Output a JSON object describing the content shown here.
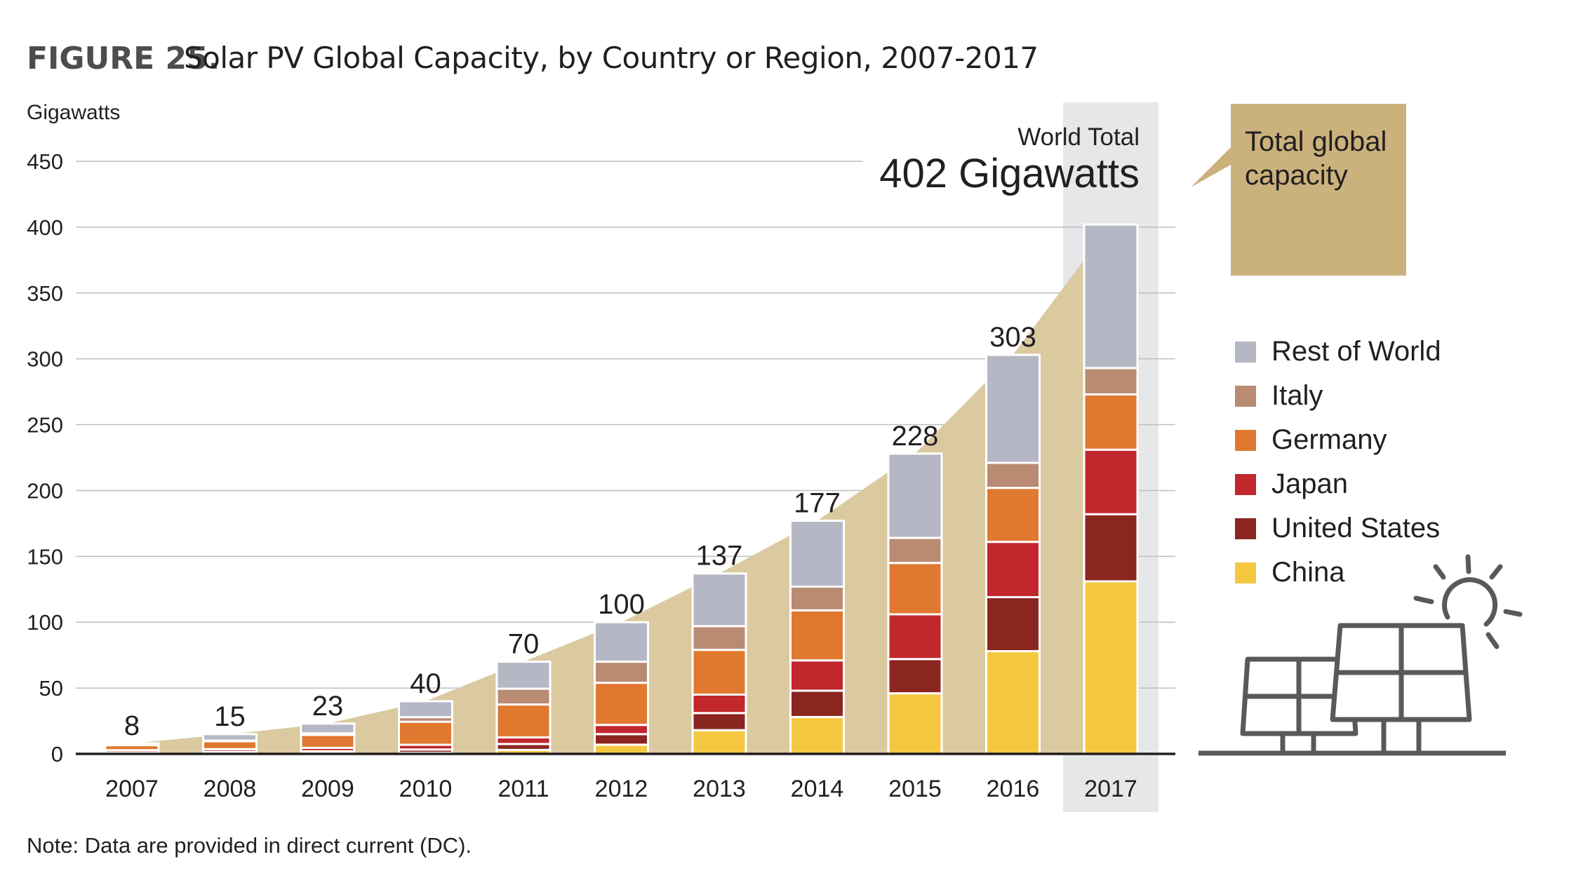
{
  "figure_label": "FIGURE 25.",
  "title": "Solar PV Global Capacity, by Country or Region, 2007-2017",
  "note": "Note: Data are provided in direct current (DC).",
  "world_total": {
    "label": "World Total",
    "value": "402 Gigawatts"
  },
  "callout": "Total global capacity",
  "colors": {
    "total_area": "#dbcaa0",
    "highlight_column": "#e6e7e9",
    "callout_box": "#cbb27d",
    "grid": "#bcbec0",
    "axis": "#231f20",
    "icon": "#58595b"
  },
  "icons": [
    "solar-panel-icon",
    "sun-icon"
  ],
  "chart_data": {
    "type": "bar",
    "stacked": true,
    "ylabel": "Gigawatts",
    "xlabel": "",
    "ylim": [
      0,
      450
    ],
    "yticks": [
      0,
      50,
      100,
      150,
      200,
      250,
      300,
      350,
      400,
      450
    ],
    "grid": true,
    "legend_position": "right",
    "highlighted_category": "2017",
    "categories": [
      "2007",
      "2008",
      "2009",
      "2010",
      "2011",
      "2012",
      "2013",
      "2014",
      "2015",
      "2016",
      "2017"
    ],
    "totals": [
      8,
      15,
      23,
      40,
      70,
      100,
      137,
      177,
      228,
      303,
      402
    ],
    "total_labels": [
      "8",
      "15",
      "23",
      "40",
      "70",
      "100",
      "137",
      "177",
      "228",
      "303",
      ""
    ],
    "series": [
      {
        "name": "China",
        "color": "#f5c842",
        "values": [
          0.1,
          0.3,
          0.4,
          0.8,
          3,
          7,
          18,
          28,
          46,
          78,
          131
        ]
      },
      {
        "name": "United States",
        "color": "#8b2520",
        "values": [
          0.8,
          1.2,
          1.6,
          2.5,
          4.5,
          8,
          13,
          20,
          26,
          41,
          51
        ]
      },
      {
        "name": "Japan",
        "color": "#c1272d",
        "values": [
          1.9,
          2.1,
          2.6,
          3.6,
          5,
          7,
          14,
          23,
          34,
          42,
          49
        ]
      },
      {
        "name": "Germany",
        "color": "#e07830",
        "values": [
          3.8,
          6,
          9.8,
          17.5,
          25,
          32,
          34,
          38,
          39,
          41,
          42
        ]
      },
      {
        "name": "Italy",
        "color": "#b98b72",
        "values": [
          0.1,
          0.5,
          1.2,
          3.5,
          12,
          16,
          18,
          18,
          19,
          19,
          20
        ]
      },
      {
        "name": "Rest of World",
        "color": "#b6b7c4",
        "values": [
          1.3,
          4.9,
          7.4,
          12.1,
          20.5,
          30,
          40,
          50,
          64,
          82,
          109
        ]
      }
    ],
    "legend_order": [
      "Rest of World",
      "Italy",
      "Germany",
      "Japan",
      "United States",
      "China"
    ]
  }
}
